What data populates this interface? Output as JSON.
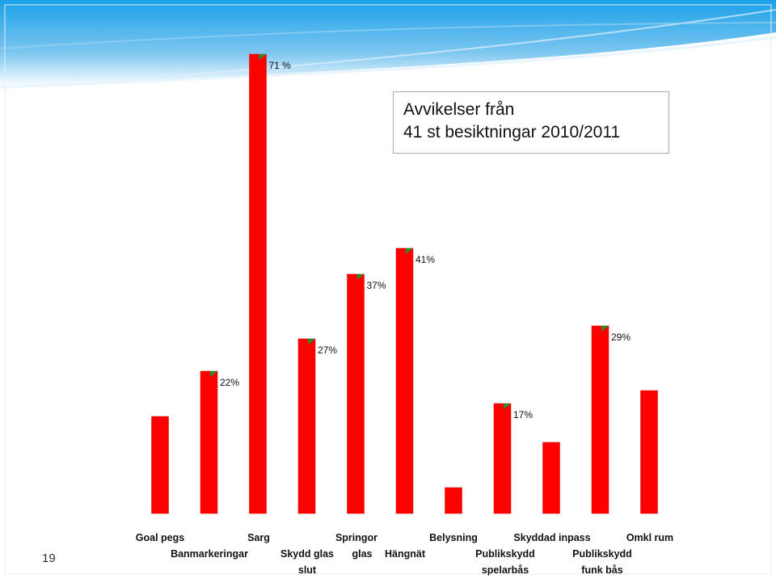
{
  "slide": {
    "number": "19",
    "title_lines": [
      "Avvikelser från",
      "41 st besiktningar 2010/2011"
    ]
  },
  "colors": {
    "bar": "#ff0000",
    "bar_edge": "#d10000",
    "marker": "#2e8b2e",
    "background_top": "#1aa0e8",
    "background_bottom": "#ffffff"
  },
  "chart_data": {
    "type": "bar",
    "title": "Avvikelser från 41 st besiktningar 2010/2011",
    "xlabel": "",
    "ylabel": "",
    "ylim": [
      0,
      100
    ],
    "grid": false,
    "legend": "none",
    "categories": [
      "Goal pegs",
      "Banmarkeringar",
      "Sarg",
      "Skydd glas slut",
      "Springor glas",
      "Hängnät",
      "Belysning",
      "Publikskydd spelarbås",
      "Skyddad inpass",
      "Publikskydd funk bås",
      "Omkl rum"
    ],
    "values": [
      15,
      22,
      71,
      27,
      37,
      41,
      4,
      17,
      11,
      29,
      19
    ],
    "data_labels": [
      "",
      "22%",
      "71 %",
      "27%",
      "37%",
      "41%",
      "",
      "17%",
      "",
      "29%",
      ""
    ]
  }
}
